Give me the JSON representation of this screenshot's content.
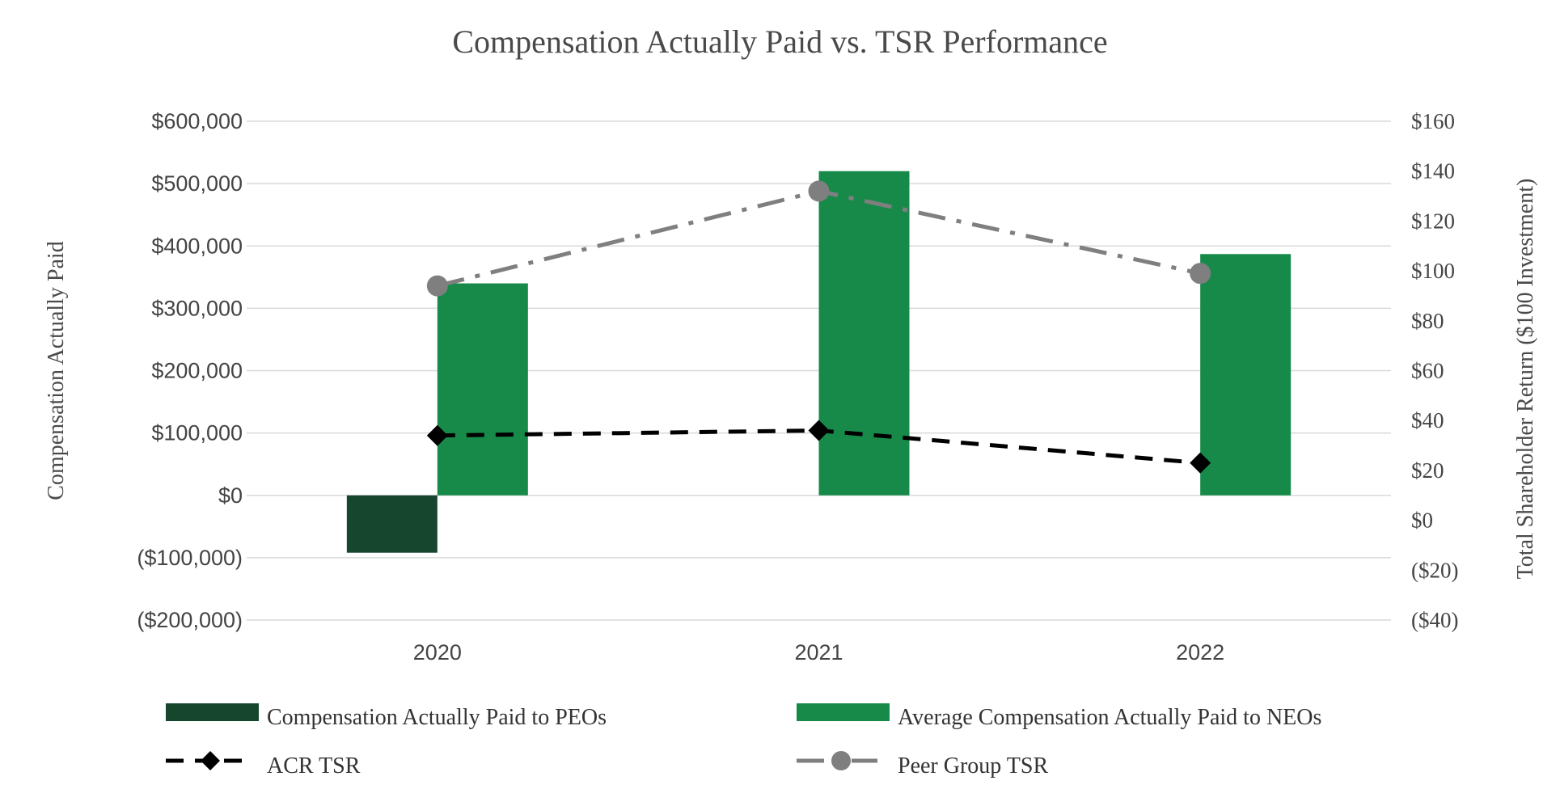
{
  "chart_data": {
    "type": "bar",
    "title": "Compensation Actually Paid vs. TSR Performance",
    "categories": [
      "2020",
      "2021",
      "2022"
    ],
    "ylabel": "Compensation Actually Paid",
    "y2label": "Total Shareholder Return ($100 Investment)",
    "ylim": [
      -200000,
      600000
    ],
    "y2lim": [
      -40,
      160
    ],
    "yticks": [
      600000,
      500000,
      400000,
      300000,
      200000,
      100000,
      0,
      -100000,
      -200000
    ],
    "ytick_labels": [
      "$600,000",
      "$500,000",
      "$400,000",
      "$300,000",
      "$200,000",
      "$100,000",
      "$0",
      "($100,000)",
      "($200,000)"
    ],
    "y2ticks": [
      160,
      140,
      120,
      100,
      80,
      60,
      40,
      20,
      0,
      -20,
      -40
    ],
    "y2tick_labels": [
      "$160",
      "$140",
      "$120",
      "$100",
      "$80",
      "$60",
      "$40",
      "$20",
      "$0",
      "($20)",
      "($40)"
    ],
    "grid": true,
    "legend_position": "bottom",
    "series": [
      {
        "name": "Compensation Actually Paid to PEOs",
        "kind": "bar",
        "axis": "left",
        "color": "#17462f",
        "values": [
          -92000,
          null,
          null
        ]
      },
      {
        "name": "Average Compensation Actually Paid to NEOs",
        "kind": "bar",
        "axis": "left",
        "color": "#178a4a",
        "values": [
          340000,
          520000,
          387000
        ]
      },
      {
        "name": "ACR TSR",
        "kind": "line",
        "axis": "right",
        "color": "#000000",
        "style": "dashed",
        "marker": "diamond",
        "values": [
          34,
          36,
          23
        ]
      },
      {
        "name": "Peer Group TSR",
        "kind": "line",
        "axis": "right",
        "color": "#7f7f7f",
        "style": "dash-dot",
        "marker": "circle",
        "values": [
          94,
          132,
          99
        ]
      }
    ]
  }
}
